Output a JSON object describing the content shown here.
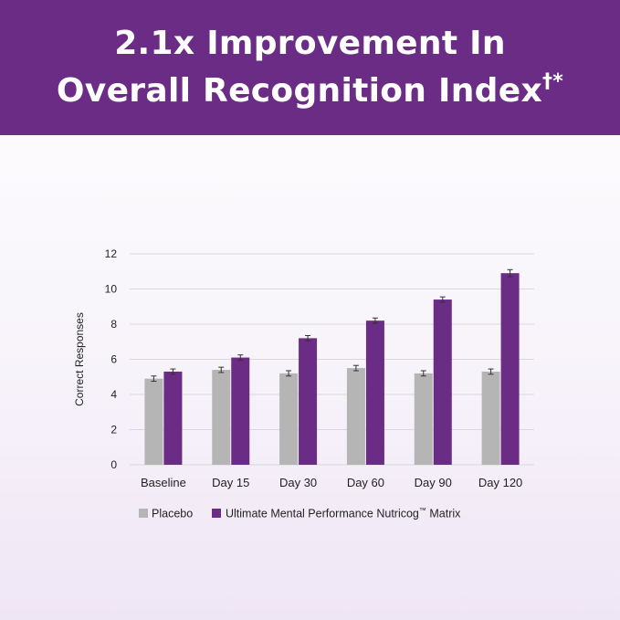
{
  "banner": {
    "line1": "2.1x Improvement In",
    "line2": "Overall Recognition Index",
    "marks": "†*"
  },
  "colors": {
    "banner": "#6a2c84",
    "placebo": "#b5b5b5",
    "treatment": "#6a2c84"
  },
  "chart_data": {
    "type": "bar",
    "title": "",
    "xlabel": "",
    "ylabel": "Correct Responses",
    "ylim": [
      0,
      12
    ],
    "yticks": [
      0,
      2,
      4,
      6,
      8,
      10,
      12
    ],
    "grid": true,
    "legend_position": "bottom",
    "categories": [
      "Baseline",
      "Day 15",
      "Day 30",
      "Day 60",
      "Day 90",
      "Day 120"
    ],
    "series": [
      {
        "name": "Placebo",
        "values": [
          4.9,
          5.4,
          5.2,
          5.5,
          5.2,
          5.3
        ],
        "error": [
          0.15,
          0.15,
          0.15,
          0.15,
          0.15,
          0.15
        ]
      },
      {
        "name": "Ultimate Mental Performance Nutricog",
        "name_mark": "™",
        "name_suffix": " Matrix",
        "values": [
          5.3,
          6.1,
          7.2,
          8.2,
          9.4,
          10.9
        ],
        "error": [
          0.15,
          0.15,
          0.15,
          0.15,
          0.15,
          0.2
        ]
      }
    ]
  }
}
